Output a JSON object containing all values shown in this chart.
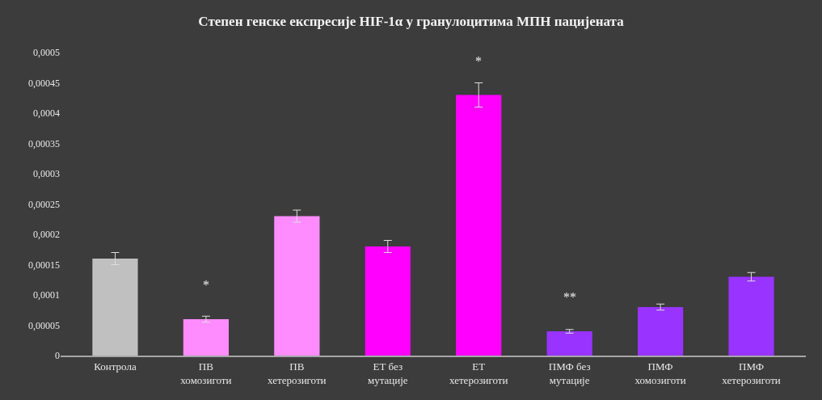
{
  "chart_data": {
    "type": "bar",
    "title": "Степен генске експресије HIF-1α у гранулоцитима МПН пацијената",
    "categories": [
      "Контрола",
      "ПВ\nхомозиготи",
      "ПВ\nхетерозиготи",
      "ЕТ без\nмутације",
      "ЕТ\nхетерозиготи",
      "ПМФ без\nмутације",
      "ПМФ\nхомозиготи",
      "ПМФ\nхетерозиготи"
    ],
    "values": [
      0.00016,
      6e-05,
      0.00023,
      0.00018,
      0.00043,
      4e-05,
      8e-05,
      0.00013
    ],
    "errors": [
      1e-05,
      5e-06,
      1e-05,
      1e-05,
      2e-05,
      3e-06,
      5e-06,
      7e-06
    ],
    "colors": [
      "#c0c0c0",
      "#ff8cff",
      "#ff8cff",
      "#ff00ff",
      "#ff00ff",
      "#9933ff",
      "#9933ff",
      "#9933ff"
    ],
    "ylim": [
      0,
      0.0005
    ],
    "yticks": [
      {
        "value": 0,
        "label": "0"
      },
      {
        "value": 5e-05,
        "label": "0,00005"
      },
      {
        "value": 0.0001,
        "label": "0,0001"
      },
      {
        "value": 0.00015,
        "label": "0,00015"
      },
      {
        "value": 0.0002,
        "label": "0,0002"
      },
      {
        "value": 0.00025,
        "label": "0,00025"
      },
      {
        "value": 0.0003,
        "label": "0,0003"
      },
      {
        "value": 0.00035,
        "label": "0,00035"
      },
      {
        "value": 0.0004,
        "label": "0,0004"
      },
      {
        "value": 0.00045,
        "label": "0,00045"
      },
      {
        "value": 0.0005,
        "label": "0,0005"
      }
    ],
    "grid": false,
    "legend": false,
    "annotations": [
      {
        "text": "*",
        "x": "ПВ\nхомозиготи",
        "y": 6e-05
      },
      {
        "text": "*",
        "x": "ЕТ\nхетерозиготи",
        "y": 0.00043
      },
      {
        "text": "**",
        "x": "ПМФ без\nмутације",
        "y": 4e-05
      }
    ]
  }
}
